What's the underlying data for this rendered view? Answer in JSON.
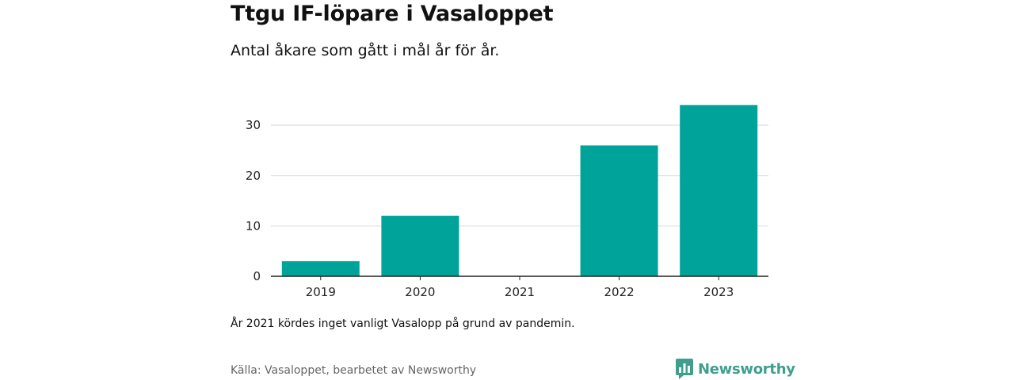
{
  "header": {
    "title": "Ttgu IF-löpare i Vasaloppet",
    "subtitle": "Antal åkare som gått i mål år för år."
  },
  "footer": {
    "note": "År 2021 kördes inget vanligt Vasalopp på grund av pandemin.",
    "source": "Källa: Vasaloppet, bearbetet av Newsworthy",
    "brand": "Newsworthy",
    "brand_icon": "bar-chart-speech-bubble-icon"
  },
  "colors": {
    "bar": "#00a39a",
    "brand": "#3f9e8e",
    "grid": "#d9d9d9",
    "axis": "#222222"
  },
  "chart_data": {
    "type": "bar",
    "categories": [
      "2019",
      "2020",
      "2021",
      "2022",
      "2023"
    ],
    "values": [
      3,
      12,
      0,
      26,
      34
    ],
    "title": "Ttgu IF-löpare i Vasaloppet",
    "subtitle": "Antal åkare som gått i mål år för år.",
    "xlabel": "",
    "ylabel": "",
    "ylim": [
      0,
      36
    ],
    "yticks": [
      0,
      10,
      20,
      30
    ],
    "grid": true,
    "legend": "none"
  }
}
